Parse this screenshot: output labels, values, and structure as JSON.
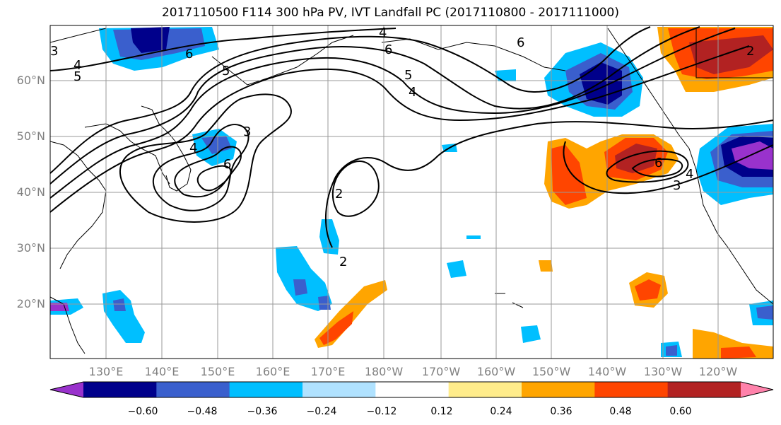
{
  "title": "2017110500 F114 300 hPa PV, IVT Landfall PC (2017110800 - 2017111000)",
  "lat_labels": [
    "60°N",
    "50°N",
    "40°N",
    "30°N",
    "20°N"
  ],
  "lon_labels": [
    "130°E",
    "140°E",
    "150°E",
    "160°E",
    "170°E",
    "180°W",
    "170°W",
    "160°W",
    "150°W",
    "140°W",
    "130°W",
    "120°W"
  ],
  "contour_labels": [
    "3",
    "4",
    "5",
    "6",
    "4",
    "6",
    "5",
    "4",
    "3",
    "6",
    "2",
    "2",
    "4",
    "5",
    "6",
    "2",
    "3",
    "4",
    "6"
  ],
  "colorbar": {
    "ticks": [
      "−0.60",
      "−0.48",
      "−0.36",
      "−0.24",
      "−0.12",
      "0.12",
      "0.24",
      "0.36",
      "0.48",
      "0.60"
    ],
    "colors": [
      "#9932cc",
      "#00008b",
      "#3a5fcd",
      "#00bfff",
      "#b0e2ff",
      "#ffffff",
      "#ffec8b",
      "#ffa500",
      "#ff4500",
      "#b22222",
      "#ff82ab"
    ]
  },
  "fill_colors": {
    "neg_dark": "#00008b",
    "neg_mid": "#3a5fcd",
    "neg_light": "#00bfff",
    "pos_light": "#ffa500",
    "pos_mid": "#ff4500",
    "pos_dark": "#b22222",
    "purple": "#9932cc"
  }
}
